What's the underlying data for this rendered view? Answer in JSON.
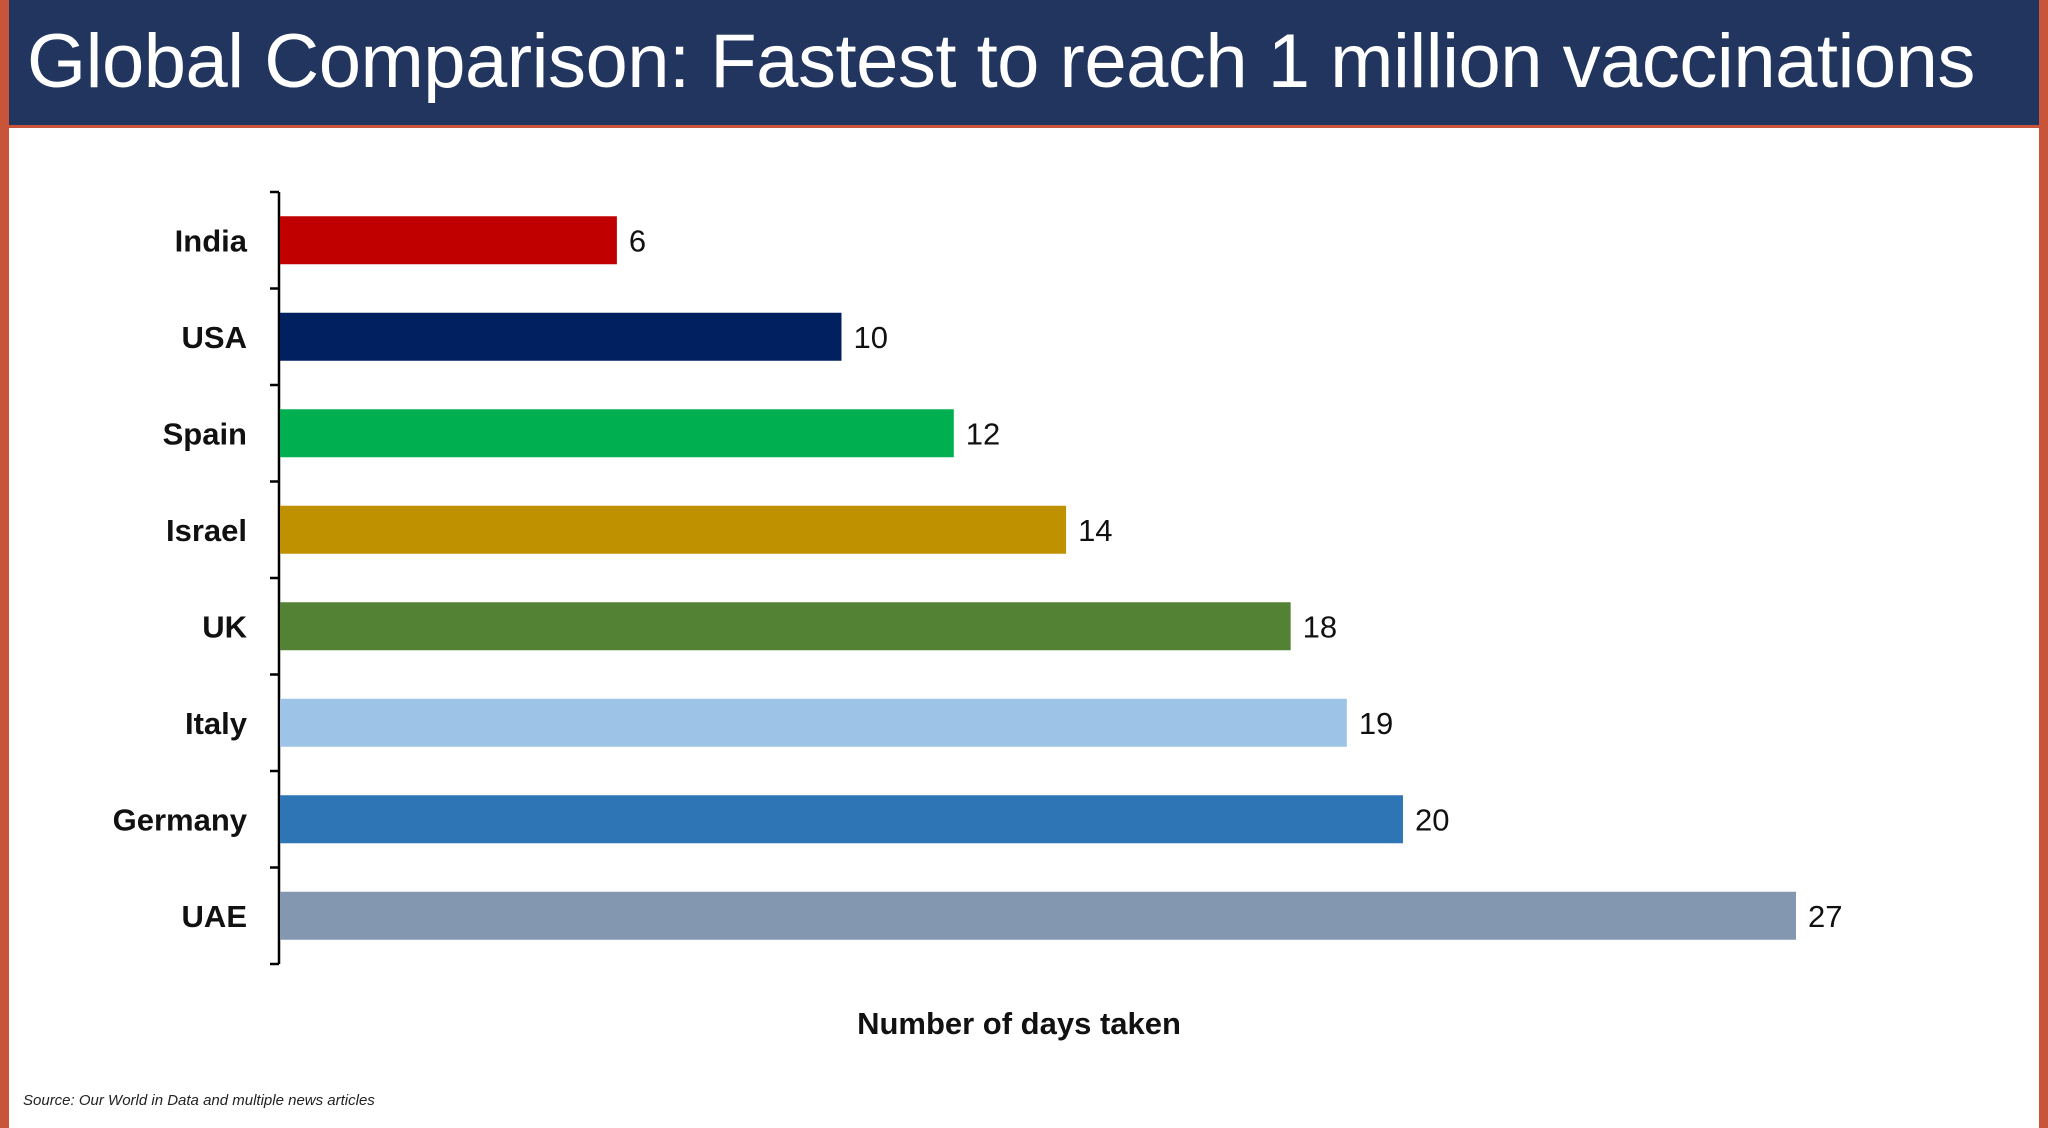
{
  "slide": {
    "title": "Global Comparison: Fastest to reach 1 million vaccinations",
    "source": "Source: Our World in Data and multiple news articles"
  },
  "chart_data": {
    "type": "bar",
    "orientation": "horizontal",
    "title": "Global Comparison: Fastest to reach 1 million vaccinations",
    "xlabel": "Number of days taken",
    "ylabel": "",
    "categories": [
      "India",
      "USA",
      "Spain",
      "Israel",
      "UK",
      "Italy",
      "Germany",
      "UAE"
    ],
    "values": [
      6,
      10,
      12,
      14,
      18,
      19,
      20,
      27
    ],
    "colors": [
      "#c00000",
      "#002060",
      "#00b050",
      "#bf9000",
      "#548235",
      "#9dc3e6",
      "#2e75b6",
      "#8497b0"
    ],
    "xlim": [
      0,
      27
    ],
    "data_labels": true,
    "x_axis_visible": false,
    "grid": false,
    "legend": "none"
  }
}
